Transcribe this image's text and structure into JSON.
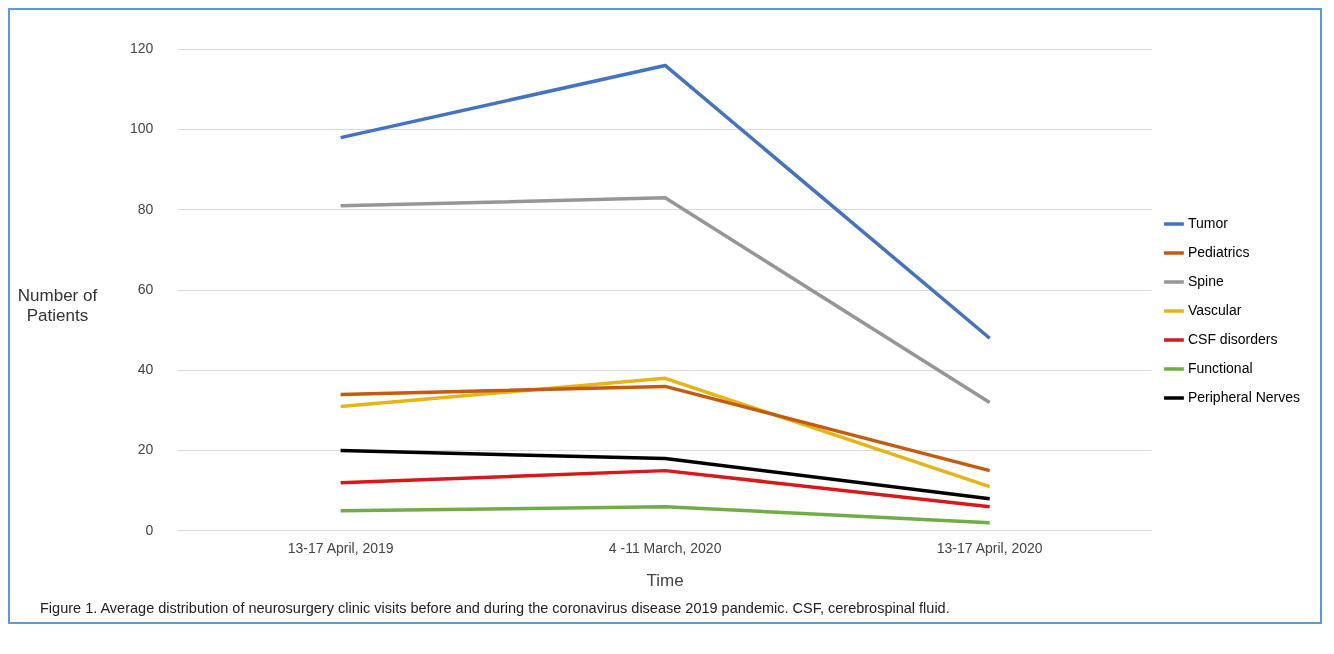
{
  "chart_data": {
    "type": "line",
    "xlabel": "Time",
    "ylabel": "Number of Patients",
    "categories": [
      "13-17 April, 2019",
      "4 -11 March, 2020",
      "13-17 April, 2020"
    ],
    "series": [
      {
        "name": "Tumor",
        "color": "#4472c4",
        "values": [
          98,
          116,
          48
        ]
      },
      {
        "name": "Pediatrics",
        "color": "#c55a11",
        "values": [
          34,
          36,
          15
        ]
      },
      {
        "name": "Spine",
        "color": "#969696",
        "values": [
          81,
          83,
          32
        ]
      },
      {
        "name": "Vascular",
        "color": "#e7b416",
        "values": [
          31,
          38,
          11
        ]
      },
      {
        "name": "CSF disorders",
        "color": "#d7191c",
        "values": [
          12,
          15,
          6
        ]
      },
      {
        "name": "Functional",
        "color": "#70ad47",
        "values": [
          5,
          6,
          2
        ]
      },
      {
        "name": "Peripheral Nerves",
        "color": "#000000",
        "values": [
          20,
          18,
          8
        ]
      }
    ],
    "ylim": [
      0,
      120
    ],
    "yticks": [
      0,
      20,
      40,
      60,
      80,
      100,
      120
    ],
    "grid": "y",
    "legend": "right",
    "marker": "none",
    "line_style": "solid",
    "annotations": [
      "Figure 1. Average distribution of neurosurgery clinic visits before and during the coronavirus disease 2019 pandemic. CSF, cerebrospinal fluid."
    ]
  }
}
